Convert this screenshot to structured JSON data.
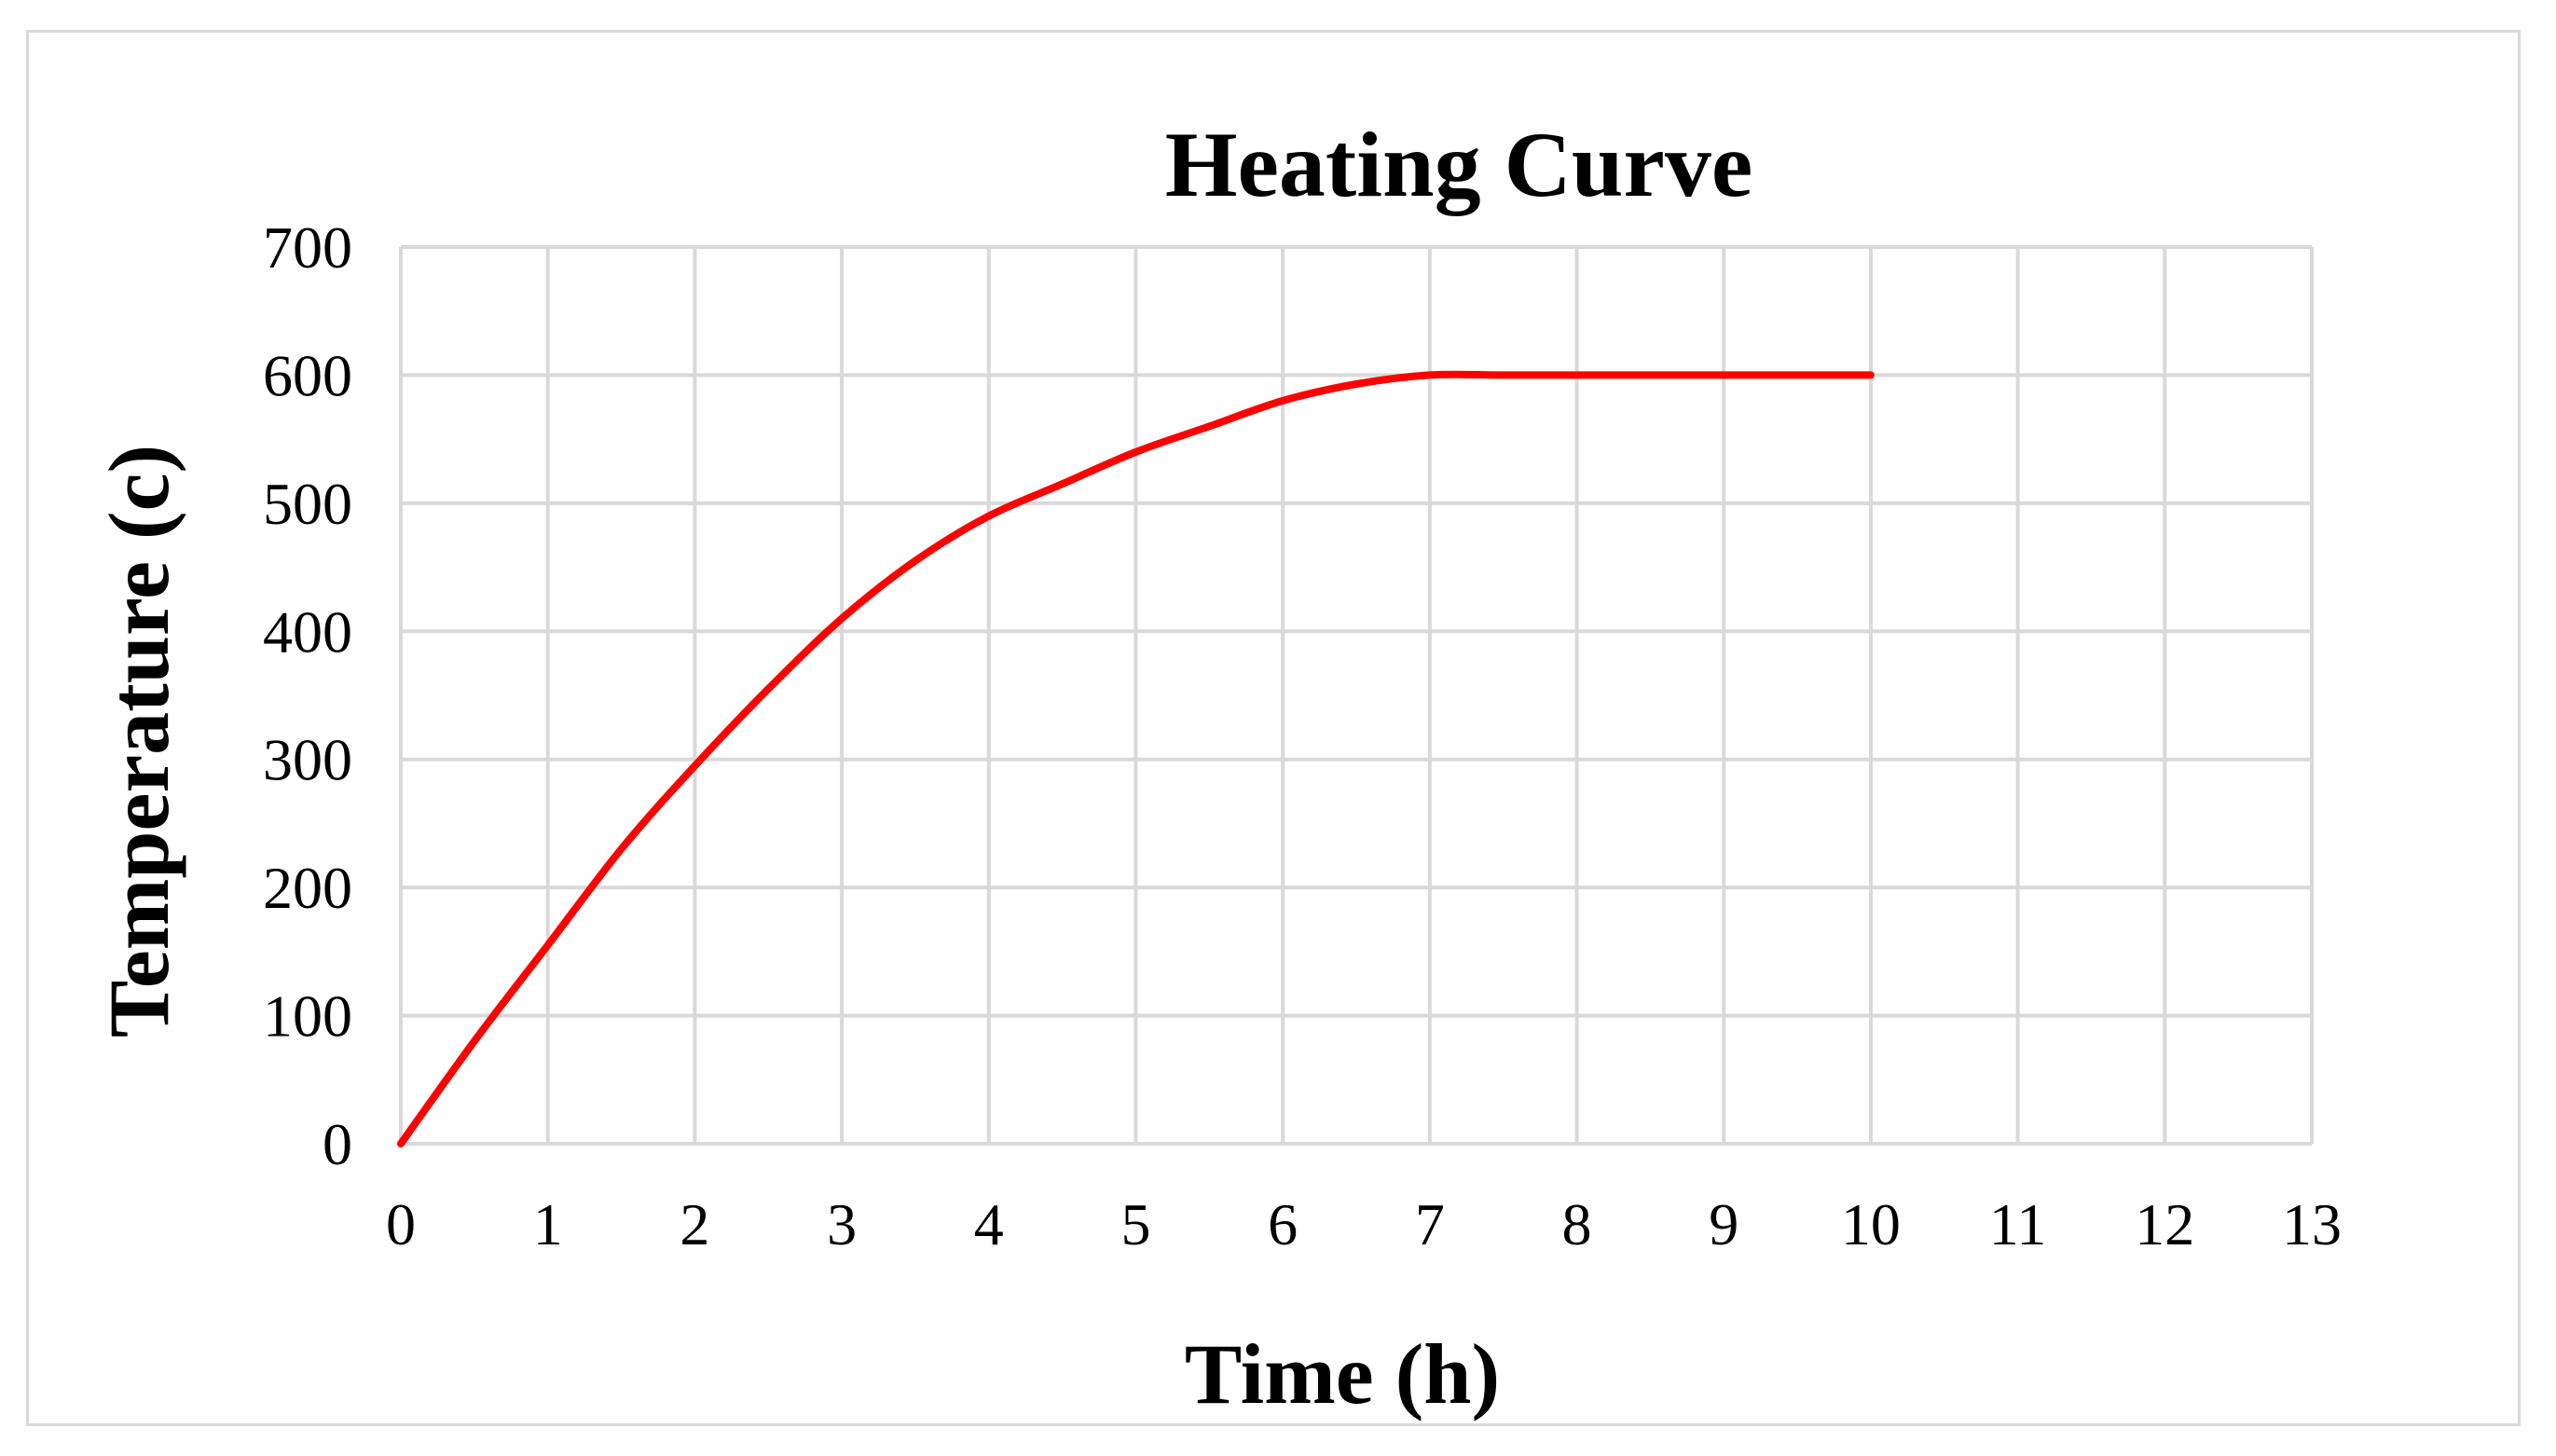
{
  "chart_data": {
    "type": "line",
    "title": "Heating Curve",
    "xlabel": "Time (h)",
    "ylabel": "Temperature (c)",
    "xlim": [
      0,
      13
    ],
    "ylim": [
      0,
      700
    ],
    "x_ticks": [
      0,
      1,
      2,
      3,
      4,
      5,
      6,
      7,
      8,
      9,
      10,
      11,
      12,
      13
    ],
    "y_ticks": [
      0,
      100,
      200,
      300,
      400,
      500,
      600,
      700
    ],
    "grid": true,
    "legend": "none",
    "series": [
      {
        "color": "#ff0000",
        "x": [
          0,
          0.5,
          1,
          1.5,
          2,
          2.5,
          3,
          3.5,
          4,
          4.5,
          5,
          5.5,
          6,
          6.5,
          7,
          7.5,
          8,
          8.5,
          9,
          9.5,
          10
        ],
        "y": [
          0,
          80,
          155,
          230,
          295,
          355,
          410,
          455,
          490,
          515,
          540,
          560,
          580,
          593,
          600,
          600,
          600,
          600,
          600,
          600,
          600
        ]
      }
    ]
  }
}
